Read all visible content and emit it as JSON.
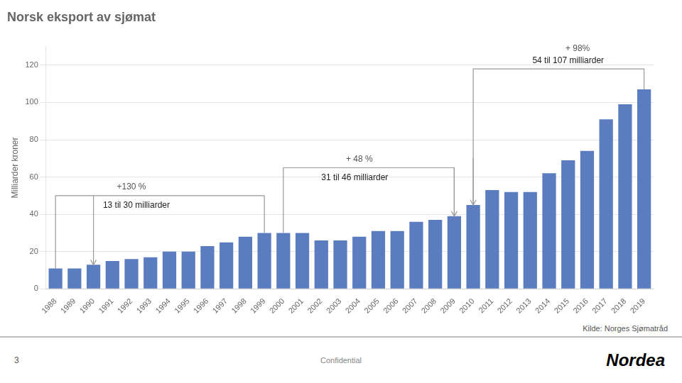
{
  "chart_data": {
    "type": "bar",
    "title": "Norsk eksport av sjømat",
    "ylabel": "Milliarder kroner",
    "categories": [
      "1988",
      "1989",
      "1990",
      "1991",
      "1992",
      "1993",
      "1994",
      "1995",
      "1996",
      "1997",
      "1998",
      "1999",
      "2000",
      "2001",
      "2002",
      "2003",
      "2004",
      "2005",
      "2006",
      "2007",
      "2008",
      "2009",
      "2010",
      "2011",
      "2012",
      "2013",
      "2014",
      "2015",
      "2016",
      "2017",
      "2018",
      "2019"
    ],
    "values": [
      11,
      11,
      13,
      15,
      16,
      17,
      20,
      20,
      23,
      25,
      28,
      30,
      30,
      30,
      26,
      26,
      28,
      31,
      31,
      36,
      37,
      39,
      45,
      53,
      52,
      52,
      62,
      69,
      74,
      91,
      99,
      107
    ],
    "color": "#5b7dc0",
    "ylim": [
      0,
      130
    ],
    "yticks": [
      0,
      20,
      40,
      60,
      80,
      100,
      120
    ],
    "grid": true,
    "annotations": [
      "+130 %",
      "13 til 30 milliarder",
      "+ 48 %",
      "31 til 46 milliarder",
      "+ 98%",
      "54 til 107 milliarder"
    ],
    "source": "Kilde: Norges Sjømatråd",
    "footer": [
      "3",
      "Confidential",
      "Nordea"
    ]
  }
}
